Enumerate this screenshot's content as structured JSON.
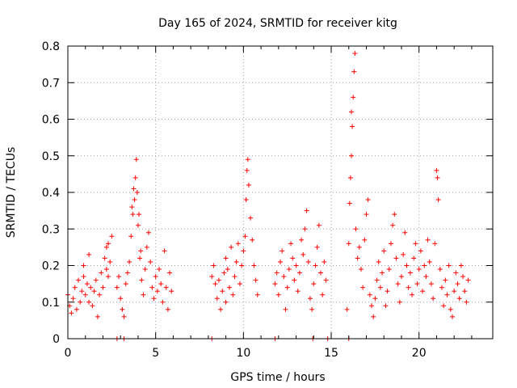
{
  "chart_data": {
    "type": "scatter",
    "title": "Day 165 of 2024, SRMTID for receiver kitg",
    "xlabel": "GPS time / hours",
    "ylabel": "SRMTID / TECUs",
    "xlim": [
      0,
      24.2
    ],
    "ylim": [
      0,
      0.8
    ],
    "x_ticks": [
      0,
      5,
      10,
      15,
      20
    ],
    "x_tick_labels": [
      "0",
      "5",
      "10",
      "15",
      "20"
    ],
    "y_ticks": [
      0,
      0.1,
      0.2,
      0.3,
      0.4,
      0.5,
      0.6,
      0.7,
      0.8
    ],
    "y_tick_labels": [
      "0",
      "0.1",
      "0.2",
      "0.3",
      "0.4",
      "0.5",
      "0.6",
      "0.7",
      "0.8"
    ],
    "grid": true,
    "marker": "plus",
    "series_color": "#ff0000",
    "series": [
      {
        "name": "SRMTID",
        "points": [
          [
            0.0,
            0.12
          ],
          [
            0.1,
            0.09
          ],
          [
            0.2,
            0.07
          ],
          [
            0.3,
            0.11
          ],
          [
            0.4,
            0.14
          ],
          [
            0.5,
            0.08
          ],
          [
            0.6,
            0.16
          ],
          [
            0.7,
            0.1
          ],
          [
            0.8,
            0.13
          ],
          [
            0.9,
            0.17
          ],
          [
            1.0,
            0.12
          ],
          [
            1.1,
            0.15
          ],
          [
            1.2,
            0.1
          ],
          [
            1.3,
            0.14
          ],
          [
            1.4,
            0.09
          ],
          [
            1.5,
            0.13
          ],
          [
            1.6,
            0.16
          ],
          [
            1.7,
            0.06
          ],
          [
            1.8,
            0.12
          ],
          [
            1.9,
            0.18
          ],
          [
            2.0,
            0.14
          ],
          [
            2.1,
            0.22
          ],
          [
            2.2,
            0.19
          ],
          [
            2.3,
            0.26
          ],
          [
            2.4,
            0.21
          ],
          [
            2.5,
            0.28
          ],
          [
            2.3,
            0.17
          ],
          [
            2.2,
            0.25
          ],
          [
            1.2,
            0.23
          ],
          [
            0.9,
            0.2
          ],
          [
            2.8,
            0.14
          ],
          [
            2.9,
            0.17
          ],
          [
            3.0,
            0.11
          ],
          [
            3.1,
            0.08
          ],
          [
            3.2,
            0.06
          ],
          [
            3.3,
            0.15
          ],
          [
            3.4,
            0.18
          ],
          [
            3.5,
            0.21
          ],
          [
            3.6,
            0.28
          ],
          [
            3.7,
            0.34
          ],
          [
            3.8,
            0.38
          ],
          [
            3.85,
            0.44
          ],
          [
            3.9,
            0.49
          ],
          [
            3.95,
            0.4
          ],
          [
            4.0,
            0.31
          ],
          [
            4.1,
            0.22
          ],
          [
            4.2,
            0.16
          ],
          [
            4.3,
            0.12
          ],
          [
            4.4,
            0.19
          ],
          [
            4.5,
            0.25
          ],
          [
            4.6,
            0.29
          ],
          [
            4.7,
            0.21
          ],
          [
            4.8,
            0.14
          ],
          [
            4.9,
            0.11
          ],
          [
            5.0,
            0.17
          ],
          [
            5.1,
            0.13
          ],
          [
            5.2,
            0.19
          ],
          [
            5.3,
            0.15
          ],
          [
            5.4,
            0.1
          ],
          [
            5.5,
            0.24
          ],
          [
            5.6,
            0.14
          ],
          [
            5.7,
            0.08
          ],
          [
            5.8,
            0.18
          ],
          [
            5.9,
            0.13
          ],
          [
            3.65,
            0.36
          ],
          [
            3.75,
            0.41
          ],
          [
            4.05,
            0.34
          ],
          [
            4.15,
            0.24
          ],
          [
            8.2,
            0.17
          ],
          [
            8.3,
            0.2
          ],
          [
            8.4,
            0.15
          ],
          [
            8.5,
            0.11
          ],
          [
            8.6,
            0.16
          ],
          [
            8.7,
            0.08
          ],
          [
            8.8,
            0.13
          ],
          [
            8.9,
            0.18
          ],
          [
            9.0,
            0.22
          ],
          [
            9.1,
            0.19
          ],
          [
            9.2,
            0.14
          ],
          [
            9.3,
            0.25
          ],
          [
            9.4,
            0.12
          ],
          [
            9.5,
            0.17
          ],
          [
            9.6,
            0.21
          ],
          [
            9.7,
            0.26
          ],
          [
            9.8,
            0.15
          ],
          [
            9.9,
            0.2
          ],
          [
            10.0,
            0.24
          ],
          [
            10.1,
            0.28
          ],
          [
            10.15,
            0.38
          ],
          [
            10.2,
            0.46
          ],
          [
            10.25,
            0.49
          ],
          [
            10.3,
            0.42
          ],
          [
            10.4,
            0.33
          ],
          [
            10.5,
            0.27
          ],
          [
            10.6,
            0.2
          ],
          [
            10.7,
            0.16
          ],
          [
            10.8,
            0.12
          ],
          [
            9.0,
            0.1
          ],
          [
            11.8,
            0.15
          ],
          [
            11.9,
            0.18
          ],
          [
            12.0,
            0.12
          ],
          [
            12.1,
            0.21
          ],
          [
            12.2,
            0.24
          ],
          [
            12.3,
            0.17
          ],
          [
            12.4,
            0.08
          ],
          [
            12.5,
            0.14
          ],
          [
            12.6,
            0.19
          ],
          [
            12.7,
            0.26
          ],
          [
            12.8,
            0.22
          ],
          [
            12.9,
            0.16
          ],
          [
            13.0,
            0.2
          ],
          [
            13.1,
            0.13
          ],
          [
            13.2,
            0.18
          ],
          [
            13.3,
            0.27
          ],
          [
            13.4,
            0.23
          ],
          [
            13.5,
            0.3
          ],
          [
            13.6,
            0.35
          ],
          [
            13.7,
            0.21
          ],
          [
            13.8,
            0.11
          ],
          [
            13.9,
            0.08
          ],
          [
            14.0,
            0.15
          ],
          [
            14.1,
            0.2
          ],
          [
            14.2,
            0.25
          ],
          [
            14.3,
            0.31
          ],
          [
            14.4,
            0.18
          ],
          [
            14.5,
            0.12
          ],
          [
            14.6,
            0.21
          ],
          [
            14.7,
            0.16
          ],
          [
            15.9,
            0.08
          ],
          [
            16.0,
            0.26
          ],
          [
            16.05,
            0.37
          ],
          [
            16.1,
            0.44
          ],
          [
            16.15,
            0.5
          ],
          [
            16.2,
            0.58
          ],
          [
            16.25,
            0.66
          ],
          [
            16.3,
            0.73
          ],
          [
            16.35,
            0.78
          ],
          [
            16.15,
            0.62
          ],
          [
            16.4,
            0.3
          ],
          [
            16.5,
            0.22
          ],
          [
            16.6,
            0.25
          ],
          [
            16.7,
            0.19
          ],
          [
            16.8,
            0.14
          ],
          [
            16.9,
            0.27
          ],
          [
            17.0,
            0.34
          ],
          [
            17.1,
            0.38
          ],
          [
            17.2,
            0.12
          ],
          [
            17.3,
            0.09
          ],
          [
            17.4,
            0.06
          ],
          [
            17.5,
            0.11
          ],
          [
            17.6,
            0.16
          ],
          [
            17.7,
            0.21
          ],
          [
            17.8,
            0.14
          ],
          [
            17.9,
            0.18
          ],
          [
            18.0,
            0.24
          ],
          [
            18.1,
            0.09
          ],
          [
            18.2,
            0.13
          ],
          [
            18.3,
            0.19
          ],
          [
            18.4,
            0.26
          ],
          [
            18.5,
            0.31
          ],
          [
            18.6,
            0.34
          ],
          [
            18.7,
            0.22
          ],
          [
            18.8,
            0.15
          ],
          [
            18.9,
            0.1
          ],
          [
            19.0,
            0.17
          ],
          [
            19.1,
            0.23
          ],
          [
            19.2,
            0.29
          ],
          [
            19.3,
            0.2
          ],
          [
            19.4,
            0.14
          ],
          [
            19.5,
            0.18
          ],
          [
            19.6,
            0.12
          ],
          [
            19.7,
            0.22
          ],
          [
            19.8,
            0.26
          ],
          [
            19.9,
            0.15
          ],
          [
            20.0,
            0.19
          ],
          [
            20.1,
            0.24
          ],
          [
            20.2,
            0.13
          ],
          [
            20.3,
            0.2
          ],
          [
            20.4,
            0.17
          ],
          [
            20.5,
            0.27
          ],
          [
            20.6,
            0.21
          ],
          [
            20.7,
            0.15
          ],
          [
            20.8,
            0.11
          ],
          [
            20.9,
            0.26
          ],
          [
            21.0,
            0.46
          ],
          [
            21.05,
            0.44
          ],
          [
            21.1,
            0.38
          ],
          [
            21.2,
            0.19
          ],
          [
            21.3,
            0.14
          ],
          [
            21.4,
            0.09
          ],
          [
            21.5,
            0.16
          ],
          [
            21.6,
            0.12
          ],
          [
            21.7,
            0.2
          ],
          [
            21.8,
            0.08
          ],
          [
            21.9,
            0.06
          ],
          [
            22.0,
            0.13
          ],
          [
            22.1,
            0.18
          ],
          [
            22.2,
            0.15
          ],
          [
            22.3,
            0.11
          ],
          [
            22.4,
            0.2
          ],
          [
            22.5,
            0.17
          ],
          [
            22.6,
            0.13
          ],
          [
            22.7,
            0.1
          ],
          [
            22.8,
            0.16
          ],
          [
            2.8,
            0.0
          ],
          [
            3.2,
            0.0
          ],
          [
            8.2,
            0.0
          ],
          [
            11.8,
            0.0
          ],
          [
            13.95,
            0.0
          ],
          [
            14.8,
            0.0
          ],
          [
            16.0,
            0.0
          ]
        ]
      }
    ]
  }
}
